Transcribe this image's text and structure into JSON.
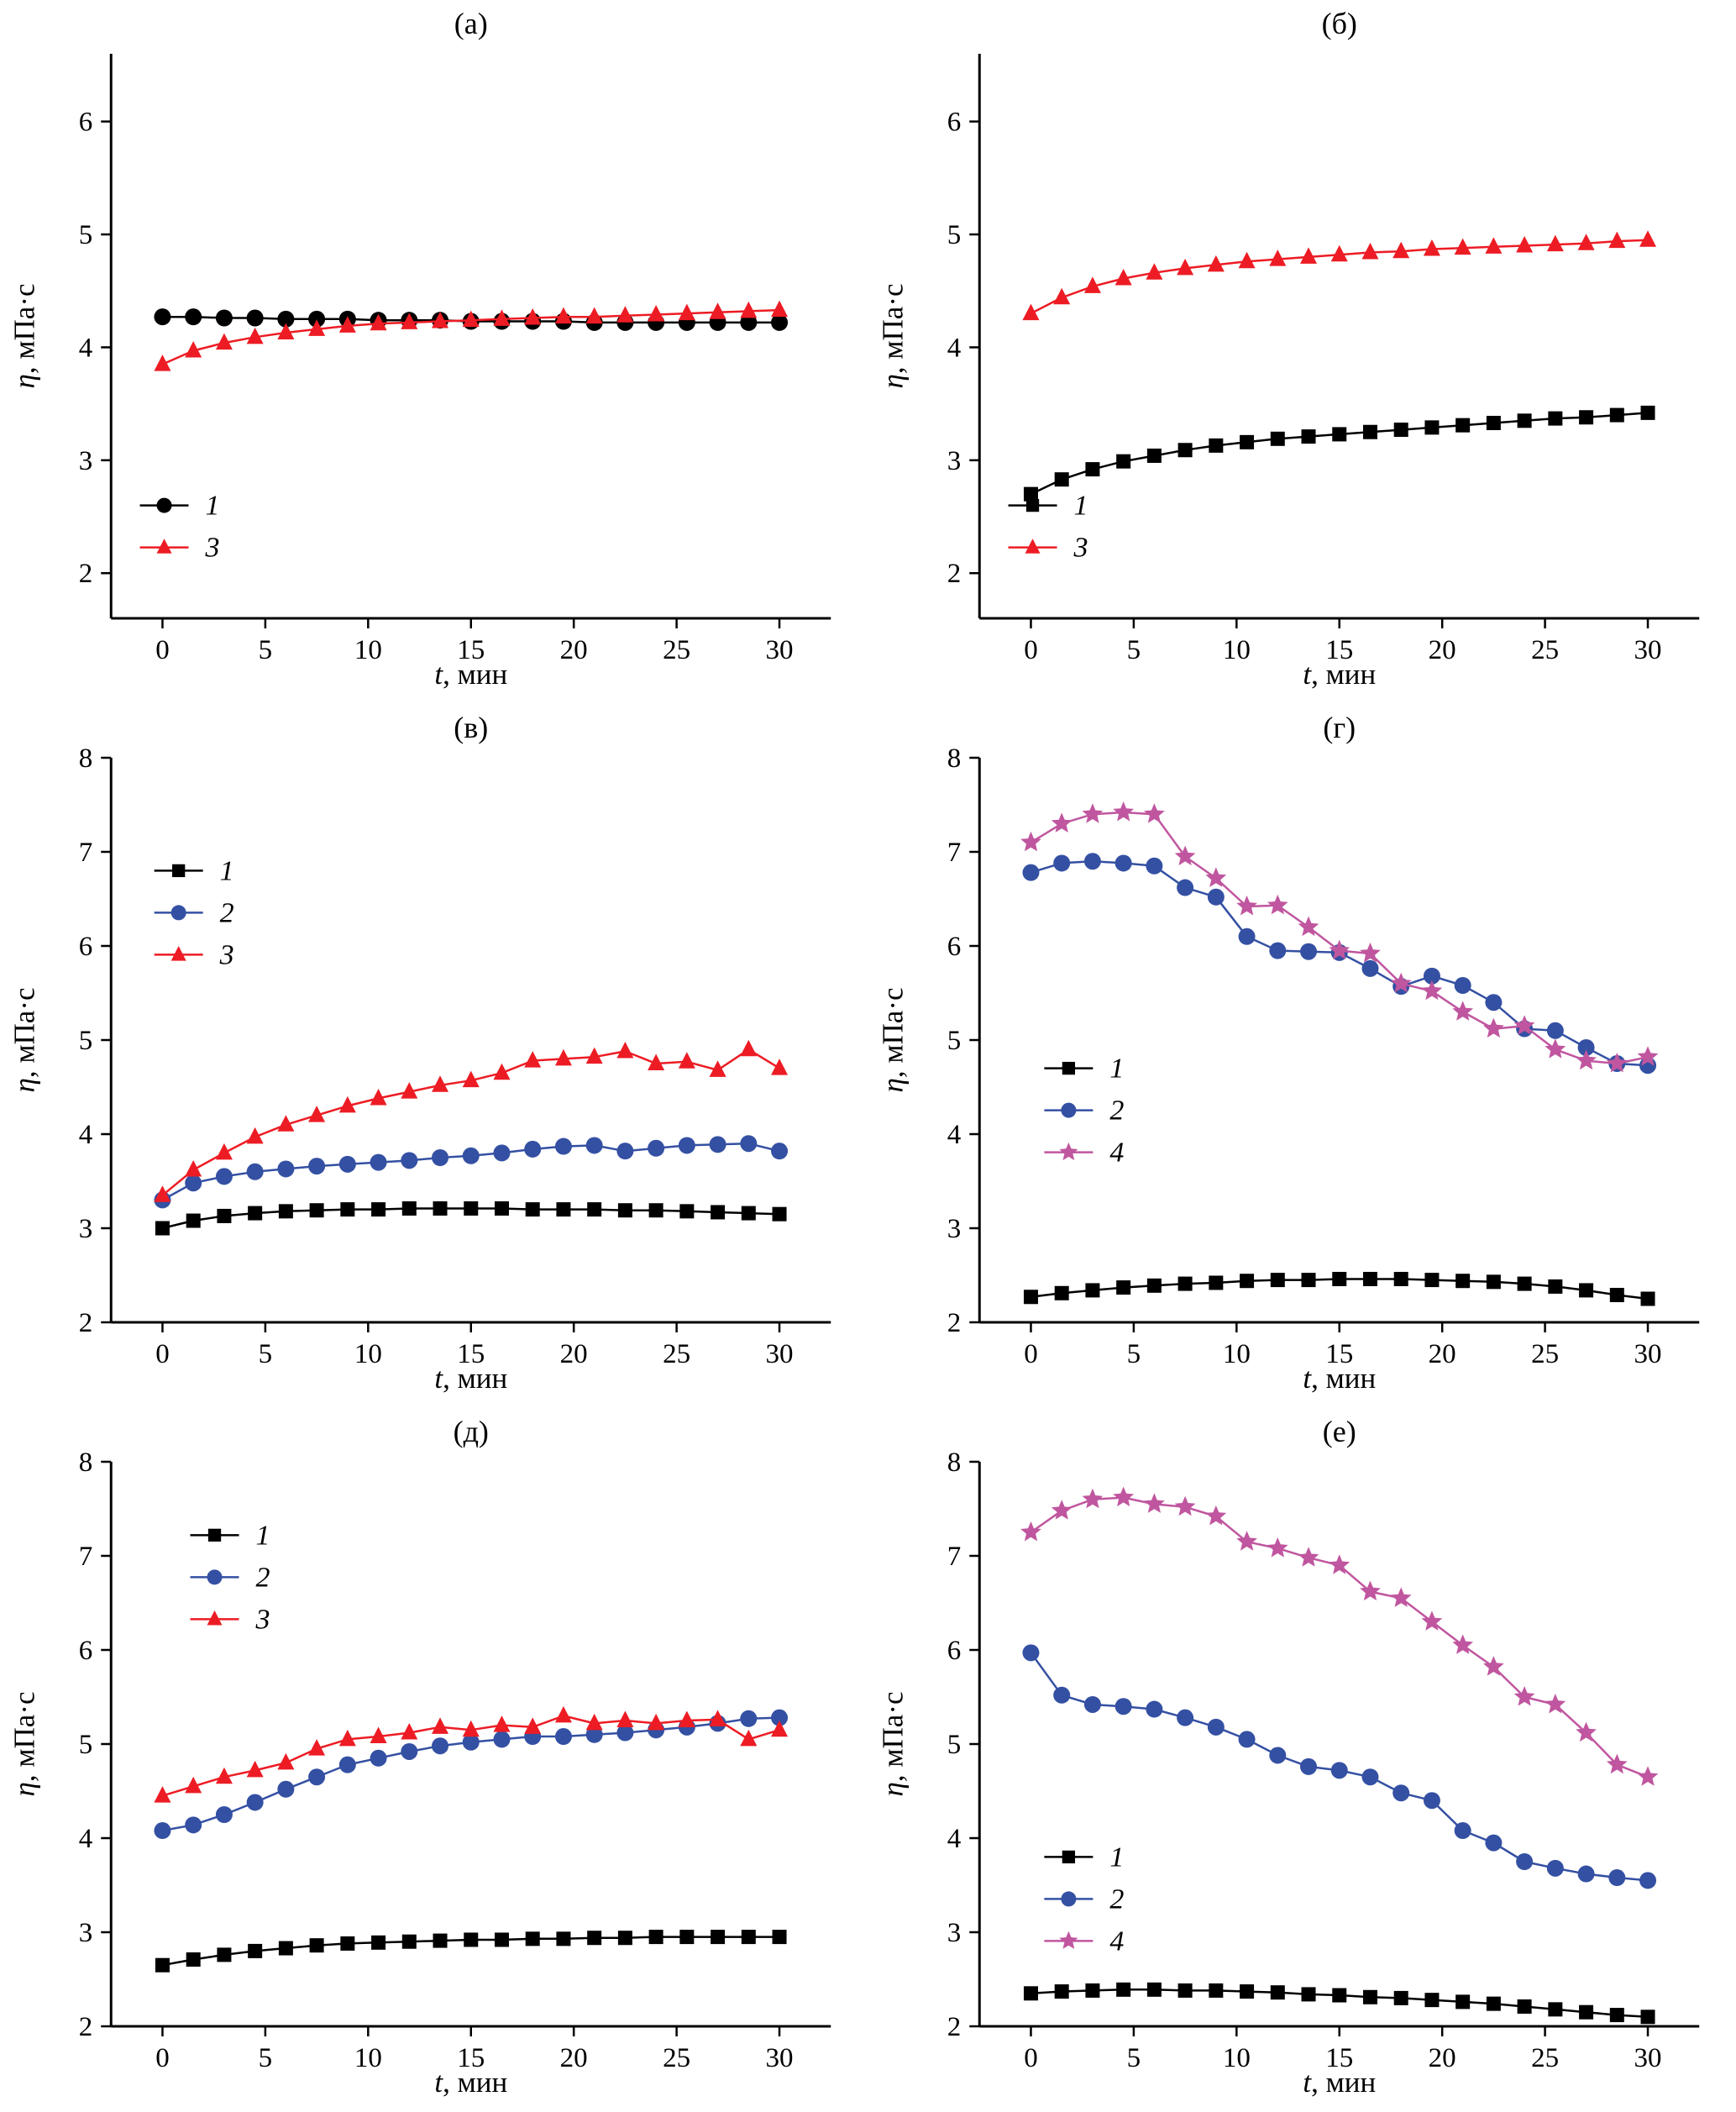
{
  "figure": {
    "description": "Six-panel line chart figure: viscosity vs time",
    "panels_order": [
      "a",
      "b",
      "v",
      "g",
      "d",
      "e"
    ]
  },
  "chart_data": [
    {
      "id": "a",
      "type": "line",
      "title": "(а)",
      "xlabel_parts": [
        "t",
        ", мин"
      ],
      "ylabel_parts": [
        "η",
        ", мПа·с"
      ],
      "xlim": [
        -2.5,
        32.5
      ],
      "ylim": [
        1.6,
        6.6
      ],
      "xticks": [
        0,
        5,
        10,
        15,
        20,
        25,
        30
      ],
      "yticks": [
        2,
        3,
        4,
        5,
        6
      ],
      "legend": {
        "x": 0.04,
        "y": 0.8
      },
      "x": [
        0,
        1.5,
        3,
        4.5,
        6,
        7.5,
        9,
        10.5,
        12,
        13.5,
        15,
        16.5,
        18,
        19.5,
        21,
        22.5,
        24,
        25.5,
        27,
        28.5,
        30
      ],
      "series": [
        {
          "name": "1",
          "marker": "circle",
          "color": "#000000",
          "y": [
            4.27,
            4.27,
            4.26,
            4.26,
            4.25,
            4.25,
            4.25,
            4.24,
            4.24,
            4.24,
            4.23,
            4.23,
            4.23,
            4.23,
            4.22,
            4.22,
            4.22,
            4.22,
            4.22,
            4.22,
            4.22
          ]
        },
        {
          "name": "3",
          "marker": "triangle",
          "color": "#ed1c24",
          "y": [
            3.85,
            3.97,
            4.04,
            4.09,
            4.13,
            4.16,
            4.19,
            4.21,
            4.22,
            4.23,
            4.24,
            4.25,
            4.26,
            4.27,
            4.27,
            4.28,
            4.29,
            4.3,
            4.31,
            4.32,
            4.33
          ]
        }
      ]
    },
    {
      "id": "b",
      "type": "line",
      "title": "(б)",
      "xlabel_parts": [
        "t",
        ", мин"
      ],
      "ylabel_parts": [
        "η",
        ", мПа·с"
      ],
      "xlim": [
        -2.5,
        32.5
      ],
      "ylim": [
        1.6,
        6.6
      ],
      "xticks": [
        0,
        5,
        10,
        15,
        20,
        25,
        30
      ],
      "yticks": [
        2,
        3,
        4,
        5,
        6
      ],
      "legend": {
        "x": 0.04,
        "y": 0.8
      },
      "x": [
        0,
        1.5,
        3,
        4.5,
        6,
        7.5,
        9,
        10.5,
        12,
        13.5,
        15,
        16.5,
        18,
        19.5,
        21,
        22.5,
        24,
        25.5,
        27,
        28.5,
        30
      ],
      "series": [
        {
          "name": "1",
          "marker": "square",
          "color": "#000000",
          "y": [
            2.7,
            2.83,
            2.92,
            2.99,
            3.04,
            3.09,
            3.13,
            3.16,
            3.19,
            3.21,
            3.23,
            3.25,
            3.27,
            3.29,
            3.31,
            3.33,
            3.35,
            3.37,
            3.38,
            3.4,
            3.42
          ]
        },
        {
          "name": "3",
          "marker": "triangle",
          "color": "#ed1c24",
          "y": [
            4.3,
            4.44,
            4.54,
            4.61,
            4.66,
            4.7,
            4.73,
            4.76,
            4.78,
            4.8,
            4.82,
            4.84,
            4.85,
            4.87,
            4.88,
            4.89,
            4.9,
            4.91,
            4.92,
            4.94,
            4.95
          ]
        }
      ]
    },
    {
      "id": "v",
      "type": "line",
      "title": "(в)",
      "xlabel_parts": [
        "t",
        ", мин"
      ],
      "ylabel_parts": [
        "η",
        ", мПа·с"
      ],
      "xlim": [
        -2.5,
        32.5
      ],
      "ylim": [
        2,
        8
      ],
      "xticks": [
        0,
        5,
        10,
        15,
        20,
        25,
        30
      ],
      "yticks": [
        2,
        3,
        4,
        5,
        6,
        7,
        8
      ],
      "legend": {
        "x": 0.06,
        "y": 0.2
      },
      "x": [
        0,
        1.5,
        3,
        4.5,
        6,
        7.5,
        9,
        10.5,
        12,
        13.5,
        15,
        16.5,
        18,
        19.5,
        21,
        22.5,
        24,
        25.5,
        27,
        28.5,
        30
      ],
      "series": [
        {
          "name": "1",
          "marker": "square",
          "color": "#000000",
          "y": [
            3.0,
            3.08,
            3.13,
            3.16,
            3.18,
            3.19,
            3.2,
            3.2,
            3.21,
            3.21,
            3.21,
            3.21,
            3.2,
            3.2,
            3.2,
            3.19,
            3.19,
            3.18,
            3.17,
            3.16,
            3.15
          ]
        },
        {
          "name": "2",
          "marker": "circle",
          "color": "#3450a3",
          "y": [
            3.3,
            3.48,
            3.55,
            3.6,
            3.63,
            3.66,
            3.68,
            3.7,
            3.72,
            3.75,
            3.77,
            3.8,
            3.84,
            3.87,
            3.88,
            3.82,
            3.85,
            3.88,
            3.89,
            3.9,
            3.82
          ]
        },
        {
          "name": "3",
          "marker": "triangle",
          "color": "#ed1c24",
          "y": [
            3.35,
            3.62,
            3.8,
            3.97,
            4.1,
            4.2,
            4.3,
            4.38,
            4.45,
            4.52,
            4.57,
            4.65,
            4.78,
            4.8,
            4.82,
            4.88,
            4.75,
            4.77,
            4.68,
            4.9,
            4.7
          ]
        }
      ]
    },
    {
      "id": "g",
      "type": "line",
      "title": "(г)",
      "xlabel_parts": [
        "t",
        ", мин"
      ],
      "ylabel_parts": [
        "η",
        ", мПа·с"
      ],
      "xlim": [
        -2.5,
        32.5
      ],
      "ylim": [
        2,
        8
      ],
      "xticks": [
        0,
        5,
        10,
        15,
        20,
        25,
        30
      ],
      "yticks": [
        2,
        3,
        4,
        5,
        6,
        7,
        8
      ],
      "legend": {
        "x": 0.09,
        "y": 0.55
      },
      "x": [
        0,
        1.5,
        3,
        4.5,
        6,
        7.5,
        9,
        10.5,
        12,
        13.5,
        15,
        16.5,
        18,
        19.5,
        21,
        22.5,
        24,
        25.5,
        27,
        28.5,
        30
      ],
      "series": [
        {
          "name": "1",
          "marker": "square",
          "color": "#000000",
          "y": [
            2.27,
            2.31,
            2.34,
            2.37,
            2.39,
            2.41,
            2.42,
            2.44,
            2.45,
            2.45,
            2.46,
            2.46,
            2.46,
            2.45,
            2.44,
            2.43,
            2.41,
            2.38,
            2.34,
            2.29,
            2.25
          ]
        },
        {
          "name": "2",
          "marker": "circle",
          "color": "#3450a3",
          "y": [
            6.78,
            6.88,
            6.9,
            6.88,
            6.85,
            6.62,
            6.52,
            6.1,
            5.95,
            5.94,
            5.93,
            5.76,
            5.57,
            5.68,
            5.58,
            5.4,
            5.12,
            5.1,
            4.92,
            4.75,
            4.73
          ]
        },
        {
          "name": "4",
          "marker": "star",
          "color": "#c0569f",
          "y": [
            7.1,
            7.3,
            7.4,
            7.42,
            7.4,
            6.95,
            6.72,
            6.42,
            6.43,
            6.2,
            5.95,
            5.92,
            5.6,
            5.52,
            5.3,
            5.12,
            5.15,
            4.9,
            4.78,
            4.75,
            4.82
          ]
        }
      ]
    },
    {
      "id": "d",
      "type": "line",
      "title": "(д)",
      "xlabel_parts": [
        "t",
        ", мин"
      ],
      "ylabel_parts": [
        "η",
        ", мПа·с"
      ],
      "xlim": [
        -2.5,
        32.5
      ],
      "ylim": [
        2,
        8
      ],
      "xticks": [
        0,
        5,
        10,
        15,
        20,
        25,
        30
      ],
      "yticks": [
        2,
        3,
        4,
        5,
        6,
        7,
        8
      ],
      "legend": {
        "x": 0.11,
        "y": 0.13
      },
      "x": [
        0,
        1.5,
        3,
        4.5,
        6,
        7.5,
        9,
        10.5,
        12,
        13.5,
        15,
        16.5,
        18,
        19.5,
        21,
        22.5,
        24,
        25.5,
        27,
        28.5,
        30
      ],
      "series": [
        {
          "name": "1",
          "marker": "square",
          "color": "#000000",
          "y": [
            2.65,
            2.71,
            2.76,
            2.8,
            2.83,
            2.86,
            2.88,
            2.89,
            2.9,
            2.91,
            2.92,
            2.92,
            2.93,
            2.93,
            2.94,
            2.94,
            2.95,
            2.95,
            2.95,
            2.95,
            2.95
          ]
        },
        {
          "name": "2",
          "marker": "circle",
          "color": "#3450a3",
          "y": [
            4.08,
            4.14,
            4.25,
            4.38,
            4.52,
            4.65,
            4.78,
            4.85,
            4.92,
            4.98,
            5.02,
            5.05,
            5.08,
            5.08,
            5.1,
            5.12,
            5.15,
            5.18,
            5.22,
            5.27,
            5.28
          ]
        },
        {
          "name": "3",
          "marker": "triangle",
          "color": "#ed1c24",
          "y": [
            4.45,
            4.55,
            4.65,
            4.72,
            4.8,
            4.95,
            5.05,
            5.08,
            5.12,
            5.18,
            5.15,
            5.2,
            5.18,
            5.3,
            5.22,
            5.25,
            5.22,
            5.25,
            5.26,
            5.05,
            5.15
          ]
        }
      ]
    },
    {
      "id": "e",
      "type": "line",
      "title": "(е)",
      "xlabel_parts": [
        "t",
        ", мин"
      ],
      "ylabel_parts": [
        "η",
        ", мПа·с"
      ],
      "xlim": [
        -2.5,
        32.5
      ],
      "ylim": [
        2,
        8
      ],
      "xticks": [
        0,
        5,
        10,
        15,
        20,
        25,
        30
      ],
      "yticks": [
        2,
        3,
        4,
        5,
        6,
        7,
        8
      ],
      "legend": {
        "x": 0.09,
        "y": 0.7
      },
      "x": [
        0,
        1.5,
        3,
        4.5,
        6,
        7.5,
        9,
        10.5,
        12,
        13.5,
        15,
        16.5,
        18,
        19.5,
        21,
        22.5,
        24,
        25.5,
        27,
        28.5,
        30
      ],
      "series": [
        {
          "name": "1",
          "marker": "square",
          "color": "#000000",
          "y": [
            2.35,
            2.37,
            2.38,
            2.39,
            2.39,
            2.38,
            2.38,
            2.37,
            2.36,
            2.34,
            2.33,
            2.31,
            2.3,
            2.28,
            2.26,
            2.24,
            2.21,
            2.18,
            2.15,
            2.12,
            2.1
          ]
        },
        {
          "name": "2",
          "marker": "circle",
          "color": "#3450a3",
          "y": [
            5.97,
            5.52,
            5.42,
            5.4,
            5.37,
            5.28,
            5.18,
            5.05,
            4.88,
            4.76,
            4.72,
            4.65,
            4.48,
            4.4,
            4.08,
            3.95,
            3.75,
            3.68,
            3.62,
            3.58,
            3.55
          ]
        },
        {
          "name": "4",
          "marker": "star",
          "color": "#c0569f",
          "y": [
            7.25,
            7.48,
            7.6,
            7.62,
            7.55,
            7.52,
            7.42,
            7.15,
            7.08,
            6.98,
            6.9,
            6.62,
            6.55,
            6.3,
            6.05,
            5.82,
            5.5,
            5.42,
            5.12,
            4.78,
            4.65
          ]
        }
      ]
    }
  ]
}
